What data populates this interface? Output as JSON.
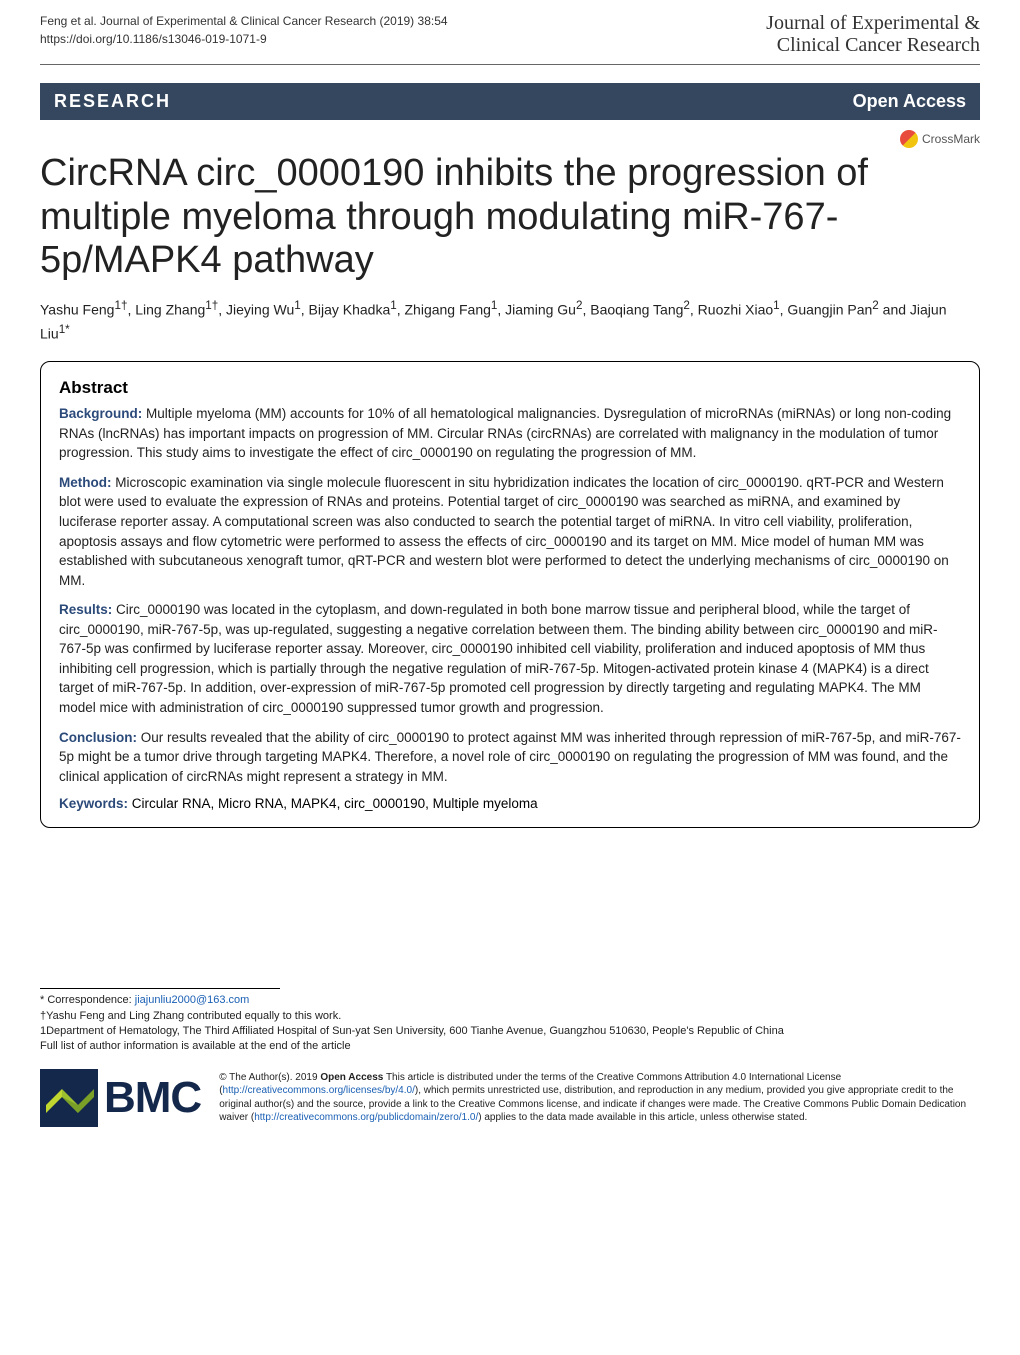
{
  "header": {
    "citation_line1": "Feng et al. Journal of Experimental & Clinical Cancer Research        (2019) 38:54",
    "citation_line2": "https://doi.org/10.1186/s13046-019-1071-9",
    "journal_name_line1": "Journal of Experimental &",
    "journal_name_line2": "Clinical Cancer Research"
  },
  "badges": {
    "research_label": "RESEARCH",
    "open_access": "Open Access",
    "crossmark": "CrossMark"
  },
  "title": "CircRNA circ_0000190 inhibits the progression of multiple myeloma through modulating miR-767-5p/MAPK4 pathway",
  "authors_html": "Yashu Feng<sup>1†</sup>, Ling Zhang<sup>1†</sup>, Jieying Wu<sup>1</sup>, Bijay Khadka<sup>1</sup>, Zhigang Fang<sup>1</sup>, Jiaming Gu<sup>2</sup>, Baoqiang Tang<sup>2</sup>, Ruozhi Xiao<sup>1</sup>, Guangjin Pan<sup>2</sup> and Jiajun Liu<sup>1*</sup>",
  "abstract": {
    "title": "Abstract",
    "background_label": "Background:",
    "background_text": " Multiple myeloma (MM) accounts for 10% of all hematological malignancies. Dysregulation of microRNAs (miRNAs) or long non-coding RNAs (lncRNAs) has important impacts on progression of MM. Circular RNAs (circRNAs) are correlated with malignancy in the modulation of tumor progression. This study aims to investigate the effect of circ_0000190 on regulating the progression of MM.",
    "method_label": "Method:",
    "method_text": " Microscopic examination via single molecule fluorescent in situ hybridization indicates the location of circ_0000190. qRT-PCR and Western blot were used to evaluate the expression of RNAs and proteins. Potential target of circ_0000190 was searched as miRNA, and examined by luciferase reporter assay. A computational screen was also conducted to search the potential target of miRNA. In vitro cell viability, proliferation, apoptosis assays and flow cytometric were performed to assess the effects of circ_0000190 and its target on MM. Mice model of human MM was established with subcutaneous xenograft tumor, qRT-PCR and western blot were performed to detect the underlying mechanisms of circ_0000190 on MM.",
    "results_label": "Results:",
    "results_text": " Circ_0000190 was located in the cytoplasm, and down-regulated in both bone marrow tissue and peripheral blood, while the target of circ_0000190, miR-767-5p, was up-regulated, suggesting a negative correlation between them. The binding ability between circ_0000190 and miR-767-5p was confirmed by luciferase reporter assay. Moreover, circ_0000190 inhibited cell viability, proliferation and induced apoptosis of MM thus inhibiting cell progression, which is partially through the negative regulation of miR-767-5p. Mitogen-activated protein kinase 4 (MAPK4) is a direct target of miR-767-5p. In addition, over-expression of miR-767-5p promoted cell progression by directly targeting and regulating MAPK4. The MM model mice with administration of circ_0000190 suppressed tumor growth and progression.",
    "conclusion_label": "Conclusion:",
    "conclusion_text": " Our results revealed that the ability of circ_0000190 to protect against MM was inherited through repression of miR-767-5p, and miR-767-5p might be a tumor drive through targeting MAPK4. Therefore, a novel role of circ_0000190 on regulating the progression of MM was found, and the clinical application of circRNAs might represent a strategy in MM.",
    "keywords_label": "Keywords:",
    "keywords_text": " Circular RNA, Micro RNA, MAPK4, circ_0000190, Multiple myeloma"
  },
  "footer": {
    "correspondence_label": "* Correspondence: ",
    "correspondence_email": "jiajunliu2000@163.com",
    "contrib_note": "†Yashu Feng and Ling Zhang contributed equally to this work.",
    "affiliation1": "1Department of Hematology, The Third Affiliated Hospital of Sun-yat Sen University, 600 Tianhe Avenue, Guangzhou 510630, People's Republic of China",
    "full_list_note": "Full list of author information is available at the end of the article",
    "bmc_text": "BMC",
    "license_prefix": "© The Author(s). 2019 ",
    "license_bold": "Open Access",
    "license_text_1": " This article is distributed under the terms of the Creative Commons Attribution 4.0 International License (",
    "license_link_1": "http://creativecommons.org/licenses/by/4.0/",
    "license_text_2": "), which permits unrestricted use, distribution, and reproduction in any medium, provided you give appropriate credit to the original author(s) and the source, provide a link to the Creative Commons license, and indicate if changes were made. The Creative Commons Public Domain Dedication waiver (",
    "license_link_2": "http://creativecommons.org/publicdomain/zero/1.0/",
    "license_text_3": ") applies to the data made available in this article, unless otherwise stated."
  },
  "colors": {
    "research_bar_bg": "#34475e",
    "abstract_label_color": "#2b4a7a",
    "link_color": "#1a5fb4",
    "bmc_color": "#14284b"
  }
}
